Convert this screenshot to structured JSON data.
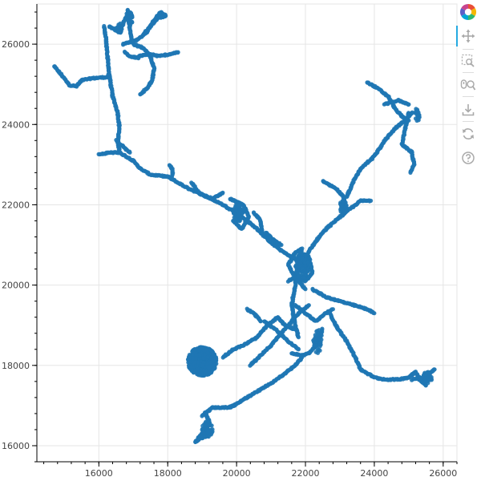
{
  "chart_data": {
    "type": "scatter",
    "title": "",
    "xlabel": "",
    "ylabel": "",
    "xlim": [
      14200,
      26400
    ],
    "ylim": [
      15600,
      27000
    ],
    "xticks": [
      16000,
      18000,
      20000,
      22000,
      24000,
      26000
    ],
    "yticks": [
      16000,
      18000,
      20000,
      22000,
      24000,
      26000
    ],
    "grid": true,
    "point_color": "#1f77b4",
    "series": [
      {
        "paths": [
          [
            [
              14700,
              25450
            ],
            [
              14900,
              25250
            ],
            [
              15150,
              24980
            ],
            [
              15350,
              24950
            ],
            [
              15500,
              25100
            ],
            [
              15800,
              25150
            ],
            [
              16250,
              25180
            ],
            [
              16300,
              25250
            ]
          ],
          [
            [
              16300,
              25250
            ],
            [
              16250,
              25700
            ],
            [
              16200,
              26200
            ],
            [
              16150,
              26450
            ]
          ],
          [
            [
              16300,
              25250
            ],
            [
              16400,
              24700
            ],
            [
              16550,
              24300
            ],
            [
              16600,
              23900
            ],
            [
              16550,
              23600
            ],
            [
              16600,
              23300
            ],
            [
              16800,
              23200
            ],
            [
              17000,
              23100
            ],
            [
              17200,
              22900
            ],
            [
              17500,
              22750
            ],
            [
              18000,
              22700
            ],
            [
              18500,
              22450
            ],
            [
              19000,
              22250
            ],
            [
              19500,
              22050
            ],
            [
              20000,
              21800
            ],
            [
              20600,
              21400
            ],
            [
              21000,
              21050
            ],
            [
              21400,
              20800
            ],
            [
              21800,
              20600
            ]
          ],
          [
            [
              16000,
              23250
            ],
            [
              16300,
              23300
            ],
            [
              16600,
              23300
            ]
          ],
          [
            [
              16500,
              23600
            ],
            [
              16700,
              23450
            ],
            [
              16900,
              23300
            ]
          ],
          [
            [
              18050,
              23000
            ],
            [
              18150,
              22850
            ],
            [
              18100,
              22650
            ]
          ],
          [
            [
              18700,
              22550
            ],
            [
              18900,
              22300
            ],
            [
              19300,
              22150
            ],
            [
              19600,
              22300
            ]
          ],
          [
            [
              16300,
              26450
            ],
            [
              16600,
              26300
            ],
            [
              16800,
              26700
            ],
            [
              16850,
              26850
            ],
            [
              16900,
              26350
            ],
            [
              16950,
              26100
            ]
          ],
          [
            [
              16700,
              26000
            ],
            [
              17100,
              26100
            ],
            [
              17400,
              26300
            ],
            [
              17600,
              26600
            ],
            [
              17800,
              26800
            ],
            [
              17950,
              26700
            ],
            [
              17700,
              26650
            ],
            [
              17500,
              26450
            ],
            [
              17300,
              26250
            ]
          ],
          [
            [
              17000,
              26000
            ],
            [
              17300,
              25900
            ],
            [
              17500,
              25700
            ],
            [
              17600,
              25400
            ],
            [
              17550,
              25100
            ],
            [
              17400,
              24900
            ],
            [
              17200,
              24750
            ]
          ],
          [
            [
              16750,
              25800
            ],
            [
              16900,
              25700
            ],
            [
              17150,
              25650
            ]
          ],
          [
            [
              17150,
              25700
            ],
            [
              17500,
              25750
            ],
            [
              17750,
              25700
            ],
            [
              18050,
              25750
            ],
            [
              18300,
              25800
            ]
          ],
          [
            [
              19800,
              22150
            ],
            [
              20200,
              22000
            ],
            [
              20350,
              21700
            ],
            [
              20150,
              21400
            ],
            [
              19900,
              21600
            ]
          ],
          [
            [
              20500,
              21800
            ],
            [
              20700,
              21600
            ],
            [
              20750,
              21300
            ]
          ],
          [
            [
              20850,
              21300
            ],
            [
              21100,
              21100
            ],
            [
              21300,
              21000
            ]
          ],
          [
            [
              21800,
              20600
            ],
            [
              21900,
              20900
            ],
            [
              21700,
              20800
            ],
            [
              21500,
              20500
            ],
            [
              21700,
              20200
            ],
            [
              22000,
              20100
            ],
            [
              22200,
              20300
            ],
            [
              22100,
              20700
            ],
            [
              21850,
              20800
            ]
          ],
          [
            [
              21800,
              20600
            ],
            [
              21700,
              20000
            ],
            [
              21600,
              19500
            ],
            [
              21700,
              19000
            ],
            [
              21800,
              18700
            ]
          ],
          [
            [
              21500,
              20100
            ],
            [
              21700,
              20200
            ],
            [
              22000,
              19900
            ]
          ],
          [
            [
              22000,
              20700
            ],
            [
              22300,
              21100
            ],
            [
              22600,
              21400
            ],
            [
              23000,
              21700
            ],
            [
              23300,
              21900
            ],
            [
              23600,
              22100
            ],
            [
              23900,
              22100
            ]
          ],
          [
            [
              22500,
              22600
            ],
            [
              22900,
              22400
            ],
            [
              23100,
              22200
            ],
            [
              23200,
              21900
            ]
          ],
          [
            [
              23200,
              22200
            ],
            [
              23400,
              22600
            ],
            [
              23600,
              22900
            ],
            [
              24000,
              23200
            ],
            [
              24300,
              23600
            ],
            [
              24600,
              23900
            ],
            [
              24900,
              24100
            ],
            [
              25100,
              24300
            ]
          ],
          [
            [
              23800,
              25050
            ],
            [
              24100,
              24900
            ],
            [
              24400,
              24700
            ],
            [
              24600,
              24400
            ],
            [
              24800,
              24200
            ],
            [
              25000,
              24100
            ]
          ],
          [
            [
              25000,
              24300
            ],
            [
              24900,
              23900
            ],
            [
              24800,
              23500
            ],
            [
              25100,
              23300
            ],
            [
              25150,
              23000
            ],
            [
              25050,
              22800
            ]
          ],
          [
            [
              24300,
              24500
            ],
            [
              24700,
              24600
            ],
            [
              25000,
              24500
            ]
          ],
          [
            [
              22200,
              19900
            ],
            [
              22600,
              19700
            ],
            [
              23000,
              19600
            ],
            [
              23400,
              19500
            ],
            [
              23800,
              19400
            ],
            [
              24000,
              19300
            ]
          ],
          [
            [
              21700,
              19500
            ],
            [
              22000,
              19300
            ],
            [
              22300,
              19100
            ],
            [
              22600,
              19300
            ],
            [
              22800,
              19400
            ]
          ],
          [
            [
              21200,
              19200
            ],
            [
              21400,
              19000
            ],
            [
              21700,
              18900
            ]
          ],
          [
            [
              22500,
              18900
            ],
            [
              22400,
              18700
            ],
            [
              22300,
              18500
            ],
            [
              22100,
              18300
            ],
            [
              21900,
              18250
            ],
            [
              21600,
              18300
            ]
          ],
          [
            [
              22700,
              19300
            ],
            [
              22950,
              18900
            ],
            [
              23200,
              18600
            ],
            [
              23450,
              18200
            ],
            [
              23600,
              17900
            ],
            [
              23800,
              17800
            ],
            [
              24000,
              17700
            ],
            [
              24300,
              17650
            ],
            [
              24700,
              17650
            ],
            [
              25000,
              17700
            ],
            [
              25200,
              17850
            ],
            [
              25300,
              17650
            ],
            [
              25500,
              17500
            ]
          ],
          [
            [
              25100,
              17650
            ],
            [
              25300,
              17700
            ],
            [
              25500,
              17650
            ],
            [
              25600,
              17800
            ],
            [
              25750,
              17900
            ]
          ],
          [
            [
              20400,
              18000
            ],
            [
              20700,
              18250
            ],
            [
              21000,
              18500
            ],
            [
              21300,
              18800
            ],
            [
              21600,
              19100
            ],
            [
              21800,
              19300
            ],
            [
              22100,
              19500
            ]
          ],
          [
            [
              19600,
              18200
            ],
            [
              19900,
              18400
            ],
            [
              20200,
              18500
            ],
            [
              20600,
              18700
            ],
            [
              20900,
              19000
            ],
            [
              21200,
              19200
            ]
          ],
          [
            [
              19800,
              16950
            ],
            [
              20200,
              17150
            ],
            [
              20600,
              17350
            ],
            [
              21000,
              17550
            ],
            [
              21400,
              17800
            ],
            [
              21700,
              18000
            ],
            [
              21900,
              18200
            ]
          ],
          [
            [
              20800,
              19100
            ],
            [
              21200,
              18850
            ],
            [
              21500,
              18600
            ],
            [
              21800,
              18400
            ]
          ],
          [
            [
              20300,
              19400
            ],
            [
              20500,
              19300
            ],
            [
              20700,
              19100
            ]
          ],
          [
            [
              19000,
              16750
            ],
            [
              19300,
              16950
            ],
            [
              19700,
              16950
            ],
            [
              19950,
              17000
            ]
          ],
          [
            [
              19100,
              16800
            ],
            [
              19200,
              16600
            ],
            [
              19150,
              16400
            ],
            [
              19000,
              16200
            ],
            [
              18800,
              16100
            ],
            [
              19000,
              16300
            ],
            [
              19300,
              16350
            ]
          ]
        ],
        "clusters": [
          {
            "x": 19000,
            "y": 18100,
            "rx": 420,
            "ry": 360,
            "count": 520
          },
          {
            "x": 21900,
            "y": 20450,
            "rx": 200,
            "ry": 330,
            "count": 140
          },
          {
            "x": 20050,
            "y": 21800,
            "rx": 150,
            "ry": 220,
            "count": 70
          },
          {
            "x": 23100,
            "y": 21950,
            "rx": 120,
            "ry": 170,
            "count": 40
          },
          {
            "x": 16600,
            "y": 26400,
            "rx": 90,
            "ry": 120,
            "count": 30
          },
          {
            "x": 16900,
            "y": 26650,
            "rx": 80,
            "ry": 200,
            "count": 30
          },
          {
            "x": 25250,
            "y": 24250,
            "rx": 80,
            "ry": 160,
            "count": 30
          },
          {
            "x": 22350,
            "y": 18600,
            "rx": 140,
            "ry": 300,
            "count": 50
          },
          {
            "x": 19150,
            "y": 16400,
            "rx": 160,
            "ry": 200,
            "count": 60
          },
          {
            "x": 25550,
            "y": 17700,
            "rx": 140,
            "ry": 150,
            "count": 35
          }
        ]
      }
    ]
  },
  "toolbar": {
    "logo_icon": "bokeh-logo-icon",
    "tools": [
      {
        "name": "pan-tool",
        "icon": "move-icon",
        "active": true
      },
      {
        "name": "box-zoom-tool",
        "icon": "box-zoom-icon",
        "active": false
      },
      {
        "name": "wheel-zoom-tool",
        "icon": "wheel-zoom-icon",
        "active": false
      },
      {
        "name": "save-tool",
        "icon": "download-icon",
        "active": false
      },
      {
        "name": "reset-tool",
        "icon": "reset-icon",
        "active": false
      },
      {
        "name": "help-tool",
        "icon": "help-icon",
        "active": false
      }
    ]
  }
}
